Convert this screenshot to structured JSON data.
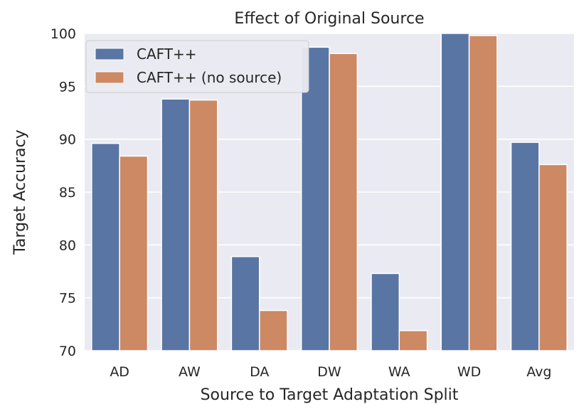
{
  "chart_data": {
    "type": "bar",
    "title": "Effect of Original Source",
    "xlabel": "Source to Target Adaptation Split",
    "ylabel": "Target Accuracy",
    "ylim": [
      70,
      100
    ],
    "yticks": [
      70,
      75,
      80,
      85,
      90,
      95,
      100
    ],
    "grid": true,
    "legend_position": "top-left",
    "categories": [
      "AD",
      "AW",
      "DA",
      "DW",
      "WA",
      "WD",
      "Avg"
    ],
    "series": [
      {
        "name": "CAFT++",
        "color": "#5975a4",
        "values": [
          89.6,
          93.8,
          78.9,
          98.7,
          77.3,
          100.0,
          89.7
        ]
      },
      {
        "name": "CAFT++ (no source)",
        "color": "#cc8963",
        "values": [
          88.4,
          93.7,
          73.8,
          98.1,
          71.9,
          99.8,
          87.6
        ]
      }
    ]
  }
}
